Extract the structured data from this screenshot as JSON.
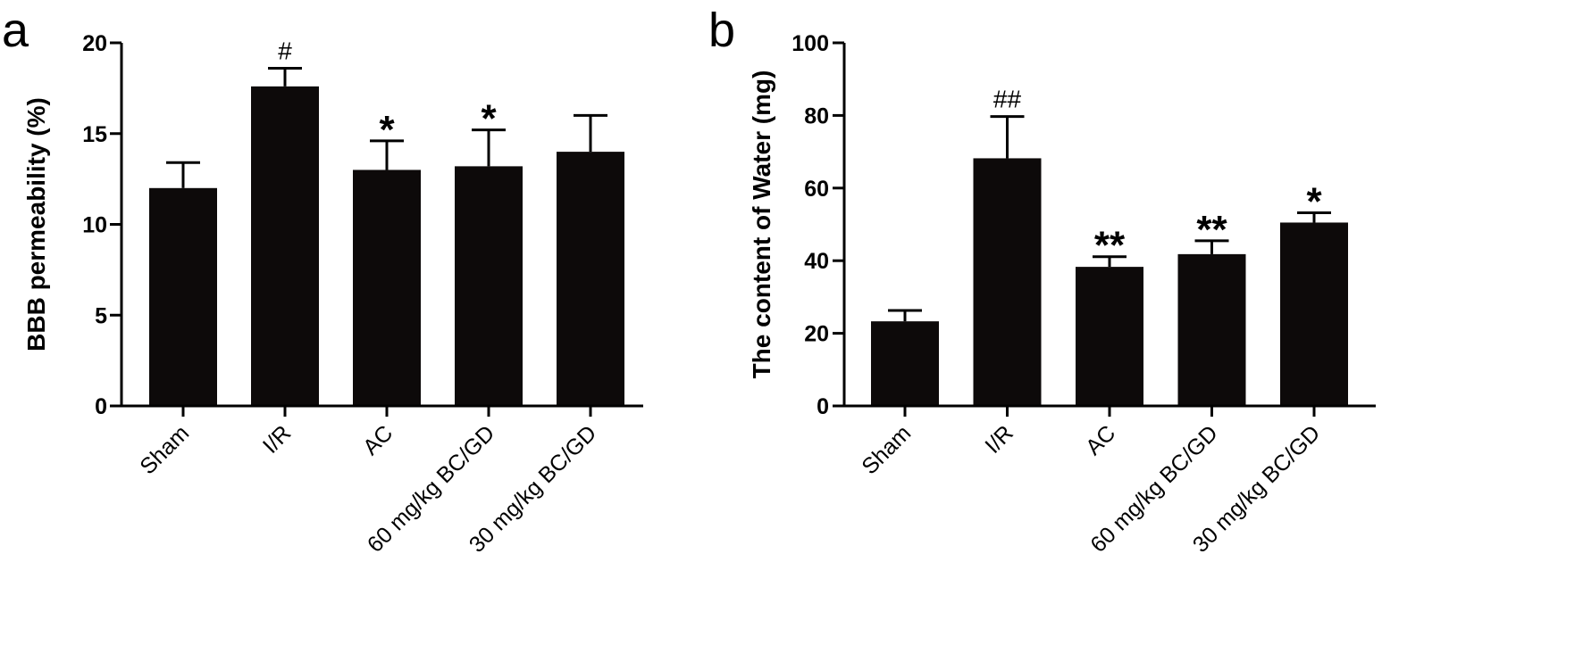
{
  "chart_data": [
    {
      "type": "bar",
      "panel_label": "a",
      "categories": [
        "Sham",
        "I/R",
        "AC",
        "60 mg/kg BC/GD",
        "30 mg/kg BC/GD"
      ],
      "values": [
        12.0,
        17.6,
        13.0,
        13.2,
        14.0
      ],
      "errors": [
        1.4,
        1.0,
        1.6,
        2.0,
        2.0
      ],
      "annotations": [
        "",
        "#",
        "*",
        "*",
        ""
      ],
      "ylabel": "BBB permeability (%)",
      "xlabel": "",
      "ylim": [
        0,
        20
      ],
      "yticks": [
        0,
        5,
        10,
        15,
        20
      ],
      "bar_color": "#0d0a0a",
      "grid": false
    },
    {
      "type": "bar",
      "panel_label": "b",
      "categories": [
        "Sham",
        "I/R",
        "AC",
        "60 mg/kg BC/GD",
        "30 mg/kg BC/GD"
      ],
      "values": [
        23.3,
        68.2,
        38.3,
        41.8,
        50.5
      ],
      "errors": [
        3.0,
        11.5,
        2.8,
        3.7,
        2.7
      ],
      "annotations": [
        "",
        "##",
        "**",
        "**",
        "*"
      ],
      "ylabel": "The content of Water (mg)",
      "xlabel": "",
      "ylim": [
        0,
        100
      ],
      "yticks": [
        0,
        20,
        40,
        60,
        80,
        100
      ],
      "bar_color": "#0d0a0a",
      "grid": false
    }
  ]
}
